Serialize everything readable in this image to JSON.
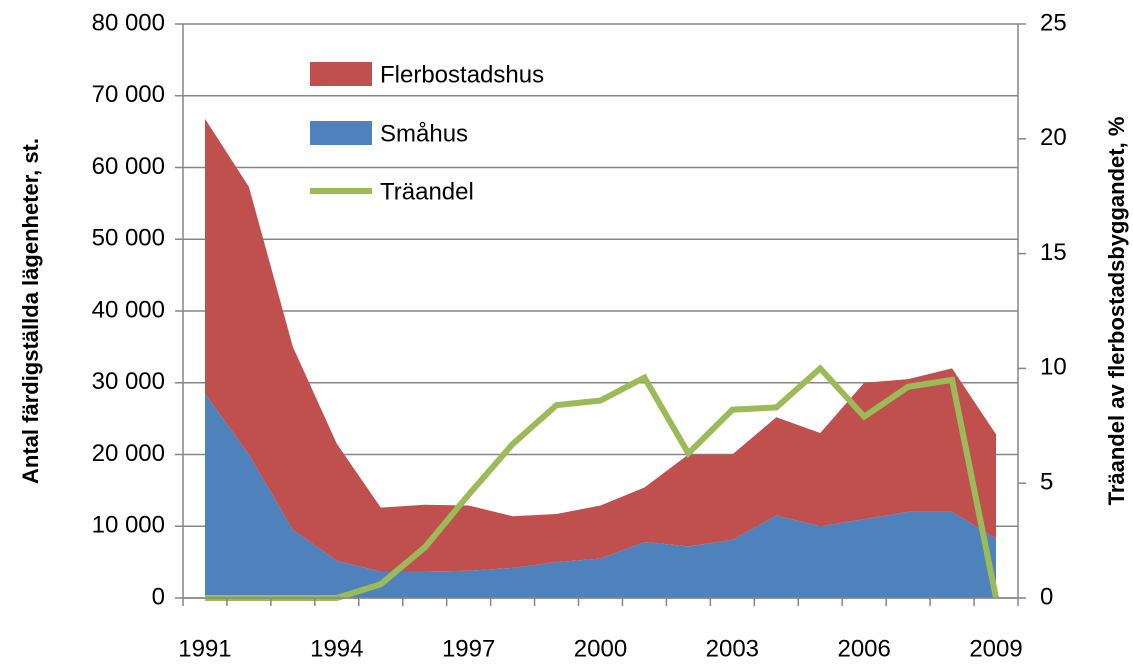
{
  "chart_data": {
    "type": "stacked-area-line",
    "categories": [
      "1991",
      null,
      null,
      "1994",
      null,
      null,
      "1997",
      null,
      null,
      "2000",
      null,
      null,
      "2003",
      null,
      null,
      "2006",
      null,
      null,
      "2009"
    ],
    "series": [
      {
        "name": "Småhus",
        "color": "#4f81bd",
        "values": [
          28500,
          20000,
          9500,
          5200,
          3700,
          3700,
          3800,
          4200,
          5000,
          5500,
          7800,
          7200,
          8100,
          11500,
          10000,
          11000,
          12000,
          12000,
          8300
        ]
      },
      {
        "name": "Flerbostadshus",
        "color": "#c0504d",
        "values": [
          38300,
          37300,
          25500,
          16300,
          8900,
          9300,
          9100,
          7200,
          6700,
          7400,
          7600,
          12800,
          11900,
          13700,
          13000,
          19000,
          18500,
          20000,
          14500
        ]
      },
      {
        "name": "Träandel",
        "color": "#9bbb59",
        "axis": "y2",
        "values": [
          0,
          0,
          0,
          0,
          0.6,
          2.2,
          4.5,
          6.7,
          8.4,
          8.6,
          9.6,
          6.3,
          8.2,
          8.3,
          10.0,
          7.9,
          9.2,
          9.5,
          0
        ]
      }
    ],
    "y_label": "Antal färdigställda  lägenheter, st.",
    "y2_label": "Träandel av flerbostadsbyggandet,  %",
    "ylim": [
      0,
      80000
    ],
    "yticks": [
      0,
      {
        "value": 10000,
        "label": "10 000"
      },
      {
        "value": 20000,
        "label": "20 000"
      },
      {
        "value": 30000,
        "label": "30 000"
      },
      {
        "value": 40000,
        "label": "40 000"
      },
      {
        "value": 50000,
        "label": "50 000"
      },
      {
        "value": 60000,
        "label": "60 000"
      },
      {
        "value": 70000,
        "label": "70 000"
      },
      {
        "value": 80000,
        "label": "80 000"
      }
    ],
    "y2lim": [
      0,
      25
    ],
    "y2ticks": [
      0,
      5,
      10,
      15,
      20,
      25
    ],
    "grid": true
  }
}
